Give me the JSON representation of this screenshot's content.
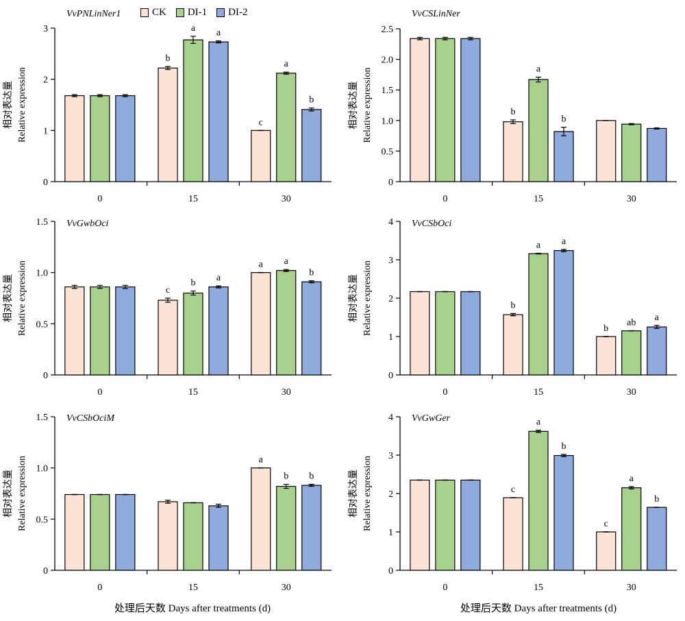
{
  "legend": {
    "items": [
      {
        "label": "CK",
        "color": "#fbe3d6"
      },
      {
        "label": "DI-1",
        "color": "#a9d18e"
      },
      {
        "label": "DI-2",
        "color": "#8faadc"
      }
    ]
  },
  "xcaption": "处理后天数 Days after treatments (d)",
  "ylabel_cn": "相对表达量",
  "ylabel_en": "Relative expression",
  "chart_data": [
    {
      "type": "bar",
      "gene": "VvPNLinNer1",
      "categories": [
        "0",
        "15",
        "30"
      ],
      "ylim": [
        0,
        3
      ],
      "yticks": [
        "0",
        "1",
        "2",
        "3"
      ],
      "series": [
        {
          "name": "CK",
          "values": [
            1.68,
            2.22,
            1.0
          ],
          "errors": [
            0.02,
            0.03,
            0.0
          ],
          "labels": [
            "",
            "b",
            "c"
          ]
        },
        {
          "name": "DI-1",
          "values": [
            1.68,
            2.77,
            2.12
          ],
          "errors": [
            0.02,
            0.07,
            0.02
          ],
          "labels": [
            "",
            "a",
            "a"
          ]
        },
        {
          "name": "DI-2",
          "values": [
            1.68,
            2.73,
            1.41
          ],
          "errors": [
            0.02,
            0.02,
            0.03
          ],
          "labels": [
            "",
            "a",
            "b"
          ]
        }
      ]
    },
    {
      "type": "bar",
      "gene": "VvCSLinNer",
      "categories": [
        "0",
        "15",
        "30"
      ],
      "ylim": [
        0,
        2.5
      ],
      "yticks": [
        "0",
        "0.5",
        "1.0",
        "1.5",
        "2.0",
        "2.5"
      ],
      "series": [
        {
          "name": "CK",
          "values": [
            2.34,
            0.98,
            1.0
          ],
          "errors": [
            0.02,
            0.03,
            0.0
          ],
          "labels": [
            "",
            "b",
            ""
          ]
        },
        {
          "name": "DI-1",
          "values": [
            2.34,
            1.67,
            0.94
          ],
          "errors": [
            0.02,
            0.04,
            0.01
          ],
          "labels": [
            "",
            "a",
            ""
          ]
        },
        {
          "name": "DI-2",
          "values": [
            2.34,
            0.82,
            0.87
          ],
          "errors": [
            0.02,
            0.07,
            0.01
          ],
          "labels": [
            "",
            "b",
            ""
          ]
        }
      ]
    },
    {
      "type": "bar",
      "gene": "VvGwbOci",
      "categories": [
        "0",
        "15",
        "30"
      ],
      "ylim": [
        0,
        1.5
      ],
      "yticks": [
        "0",
        "0.5",
        "1.0",
        "1.5"
      ],
      "series": [
        {
          "name": "CK",
          "values": [
            0.86,
            0.73,
            1.0
          ],
          "errors": [
            0.015,
            0.02,
            0.0
          ],
          "labels": [
            "",
            "c",
            "a"
          ]
        },
        {
          "name": "DI-1",
          "values": [
            0.86,
            0.8,
            1.02
          ],
          "errors": [
            0.015,
            0.02,
            0.01
          ],
          "labels": [
            "",
            "b",
            "a"
          ]
        },
        {
          "name": "DI-2",
          "values": [
            0.86,
            0.86,
            0.91
          ],
          "errors": [
            0.015,
            0.01,
            0.01
          ],
          "labels": [
            "",
            "a",
            "b"
          ]
        }
      ]
    },
    {
      "type": "bar",
      "gene": "VvCSbOci",
      "categories": [
        "0",
        "15",
        "30"
      ],
      "ylim": [
        0,
        4
      ],
      "yticks": [
        "0",
        "1",
        "2",
        "3",
        "4"
      ],
      "series": [
        {
          "name": "CK",
          "values": [
            2.17,
            1.57,
            1.0
          ],
          "errors": [
            0.0,
            0.03,
            0.0
          ],
          "labels": [
            "",
            "b",
            "b"
          ]
        },
        {
          "name": "DI-1",
          "values": [
            2.17,
            3.16,
            1.15
          ],
          "errors": [
            0.0,
            0.01,
            0.0
          ],
          "labels": [
            "",
            "a",
            "ab"
          ]
        },
        {
          "name": "DI-2",
          "values": [
            2.17,
            3.24,
            1.25
          ],
          "errors": [
            0.0,
            0.03,
            0.04
          ],
          "labels": [
            "",
            "a",
            "a"
          ]
        }
      ]
    },
    {
      "type": "bar",
      "gene": "VvCSbOciM",
      "categories": [
        "0",
        "15",
        "30"
      ],
      "ylim": [
        0,
        1.5
      ],
      "yticks": [
        "0",
        "0.5",
        "1.0",
        "1.5"
      ],
      "series": [
        {
          "name": "CK",
          "values": [
            0.74,
            0.67,
            1.0
          ],
          "errors": [
            0.0,
            0.015,
            0.0
          ],
          "labels": [
            "",
            "",
            "a"
          ]
        },
        {
          "name": "DI-1",
          "values": [
            0.74,
            0.66,
            0.82
          ],
          "errors": [
            0.0,
            0.0,
            0.02
          ],
          "labels": [
            "",
            "",
            "b"
          ]
        },
        {
          "name": "DI-2",
          "values": [
            0.74,
            0.63,
            0.83
          ],
          "errors": [
            0.0,
            0.015,
            0.01
          ],
          "labels": [
            "",
            "",
            "b"
          ]
        }
      ]
    },
    {
      "type": "bar",
      "gene": "VvGwGer",
      "categories": [
        "0",
        "15",
        "30"
      ],
      "ylim": [
        0,
        4
      ],
      "yticks": [
        "0",
        "1",
        "2",
        "3",
        "4"
      ],
      "series": [
        {
          "name": "CK",
          "values": [
            2.35,
            1.89,
            1.0
          ],
          "errors": [
            0.0,
            0.0,
            0.0
          ],
          "labels": [
            "",
            "c",
            "c"
          ]
        },
        {
          "name": "DI-1",
          "values": [
            2.35,
            3.62,
            2.15
          ],
          "errors": [
            0.0,
            0.03,
            0.03
          ],
          "labels": [
            "",
            "a",
            "a"
          ]
        },
        {
          "name": "DI-2",
          "values": [
            2.35,
            2.99,
            1.64
          ],
          "errors": [
            0.0,
            0.03,
            0.0
          ],
          "labels": [
            "",
            "b",
            "b"
          ]
        }
      ]
    }
  ]
}
